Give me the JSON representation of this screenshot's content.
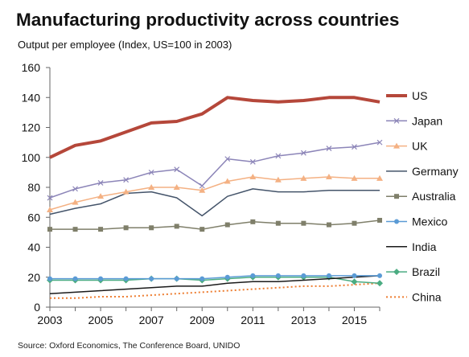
{
  "chart_data": {
    "type": "line",
    "title": "Manufacturing productivity across countries",
    "subtitle": "Output per employee (Index, US=100 in 2003)",
    "source": "Source: Oxford Economics, The Conference Board, UNIDO",
    "xlabel": "",
    "ylabel": "",
    "xlim": [
      2003,
      2016
    ],
    "ylim": [
      0,
      160
    ],
    "yticks": [
      0,
      20,
      40,
      60,
      80,
      100,
      120,
      140,
      160
    ],
    "xticks": [
      2003,
      2005,
      2007,
      2009,
      2011,
      2013,
      2015
    ],
    "grid": false,
    "legend_position": "right",
    "x": [
      2003,
      2004,
      2005,
      2006,
      2007,
      2008,
      2009,
      2010,
      2011,
      2012,
      2013,
      2014,
      2015,
      2016
    ],
    "series": [
      {
        "name": "US",
        "color": "#b5473a",
        "marker": "none",
        "dash": "",
        "values": [
          100,
          108,
          111,
          117,
          123,
          124,
          129,
          140,
          138,
          137,
          138,
          140,
          140,
          137
        ]
      },
      {
        "name": "Japan",
        "color": "#8c85b8",
        "marker": "x",
        "dash": "",
        "values": [
          73,
          79,
          83,
          85,
          90,
          92,
          81,
          99,
          97,
          101,
          103,
          106,
          107,
          110
        ]
      },
      {
        "name": "UK",
        "color": "#f4b183",
        "marker": "triangle",
        "dash": "",
        "values": [
          65,
          70,
          74,
          77,
          80,
          80,
          78,
          84,
          87,
          85,
          86,
          87,
          86,
          86
        ]
      },
      {
        "name": "Germany",
        "color": "#44546a",
        "marker": "none",
        "dash": "",
        "values": [
          62,
          66,
          69,
          76,
          77,
          73,
          61,
          74,
          79,
          77,
          77,
          78,
          78,
          78
        ]
      },
      {
        "name": "Australia",
        "color": "#7f7f6a",
        "marker": "square",
        "dash": "",
        "values": [
          52,
          52,
          52,
          53,
          53,
          54,
          52,
          55,
          57,
          56,
          56,
          55,
          56,
          58
        ]
      },
      {
        "name": "Mexico",
        "color": "#5b9bd5",
        "marker": "circle",
        "dash": "",
        "values": [
          19,
          19,
          19,
          19,
          19,
          19,
          19,
          20,
          21,
          21,
          21,
          21,
          21,
          21
        ]
      },
      {
        "name": "India",
        "color": "#1a1a1a",
        "marker": "none",
        "dash": "",
        "values": [
          9,
          10,
          11,
          12,
          13,
          14,
          14,
          16,
          17,
          17,
          18,
          19,
          20,
          21
        ]
      },
      {
        "name": "Brazil",
        "color": "#4bac82",
        "marker": "diamond",
        "dash": "",
        "values": [
          18,
          18,
          18,
          18,
          19,
          19,
          18,
          19,
          20,
          20,
          20,
          20,
          17,
          16
        ]
      },
      {
        "name": "China",
        "color": "#ed7d31",
        "marker": "none",
        "dash": "2,3",
        "values": [
          6,
          6,
          7,
          7,
          8,
          9,
          10,
          11,
          12,
          13,
          14,
          14,
          15,
          16
        ]
      }
    ]
  }
}
